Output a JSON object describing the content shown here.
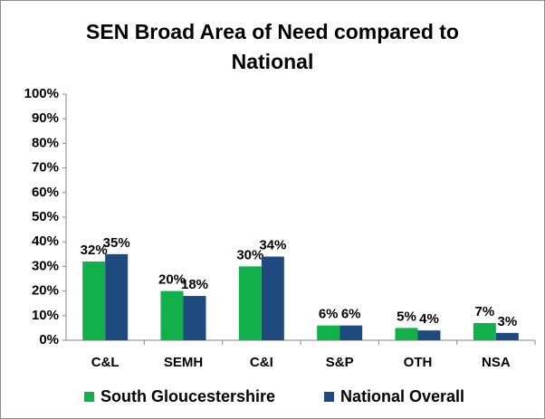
{
  "chart_data": {
    "type": "bar",
    "title": "SEN Broad Area of Need compared to National",
    "categories": [
      "C&L",
      "SEMH",
      "C&I",
      "S&P",
      "OTH",
      "NSA"
    ],
    "series": [
      {
        "name": "South Gloucestershire",
        "color": "#12b04a",
        "values": [
          32,
          20,
          30,
          6,
          5,
          7
        ],
        "value_labels": [
          "32%",
          "20%",
          "30%",
          "6%",
          "5%",
          "7%"
        ]
      },
      {
        "name": "National Overall",
        "color": "#1f4a80",
        "values": [
          35,
          18,
          34,
          6,
          4,
          3
        ],
        "value_labels": [
          "35%",
          "18%",
          "34%",
          "6%",
          "4%",
          "3%"
        ]
      }
    ],
    "ylim": [
      0,
      100
    ],
    "yticks": [
      {
        "value": 0,
        "label": "0%"
      },
      {
        "value": 10,
        "label": "10%"
      },
      {
        "value": 20,
        "label": "20%"
      },
      {
        "value": 30,
        "label": "30%"
      },
      {
        "value": 40,
        "label": "40%"
      },
      {
        "value": 50,
        "label": "50%"
      },
      {
        "value": 60,
        "label": "60%"
      },
      {
        "value": 70,
        "label": "70%"
      },
      {
        "value": 80,
        "label": "80%"
      },
      {
        "value": 90,
        "label": "90%"
      },
      {
        "value": 100,
        "label": "100%"
      }
    ],
    "grid": false,
    "legend": "bottom"
  }
}
